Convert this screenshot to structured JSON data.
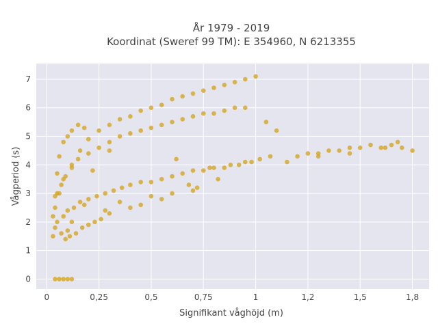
{
  "chart_data": {
    "type": "scatter",
    "title": "År 1979 - 2019",
    "subtitle": "Koordinat (Sweref 99 TM): E 354960, N 6213355",
    "xlabel": "Signifikant våghöjd (m)",
    "ylabel": "Vågperiod (s)",
    "xlim": [
      -0.05,
      1.83
    ],
    "ylim": [
      -0.35,
      7.55
    ],
    "x_ticks": [
      0,
      0.25,
      0.5,
      0.75,
      1,
      1.25,
      1.5,
      1.75
    ],
    "x_tick_labels": [
      "0",
      "0,25",
      "0,5",
      "0,75",
      "1",
      "1,2",
      "1,5",
      "1,8"
    ],
    "y_ticks": [
      0,
      1,
      2,
      3,
      4,
      5,
      6,
      7
    ],
    "y_tick_labels": [
      "0",
      "1",
      "2",
      "3",
      "4",
      "5",
      "6",
      "7"
    ],
    "grid": true,
    "colors": {
      "marker": "#D4A521",
      "plot_bg": "#E5E5F0",
      "grid": "#ffffff",
      "text": "#444444"
    },
    "series": [
      {
        "x": [
          0.04,
          0.06,
          0.08,
          0.1,
          0.12,
          0.03,
          0.03,
          0.04,
          0.05,
          0.06,
          0.08,
          0.1,
          0.12,
          0.15,
          0.18,
          0.04,
          0.07,
          0.09,
          0.11,
          0.14,
          0.17,
          0.2,
          0.23,
          0.26,
          0.3,
          0.04,
          0.06,
          0.08,
          0.12,
          0.16,
          0.2,
          0.25,
          0.3,
          0.35,
          0.4,
          0.45,
          0.5,
          0.55,
          0.6,
          0.65,
          0.7,
          0.75,
          0.8,
          0.85,
          0.9,
          0.95,
          1.0,
          1.05,
          1.1,
          1.15,
          1.2,
          1.25,
          1.3,
          1.35,
          1.4,
          1.45,
          1.5,
          1.55,
          1.6,
          1.65,
          1.7,
          1.75,
          0.05,
          0.08,
          0.1,
          0.13,
          0.16,
          0.2,
          0.24,
          0.28,
          0.32,
          0.36,
          0.4,
          0.45,
          0.5,
          0.55,
          0.6,
          0.65,
          0.7,
          0.75,
          0.8,
          0.85,
          0.88,
          0.92,
          0.95,
          0.98,
          0.05,
          0.07,
          0.09,
          0.12,
          0.15,
          0.2,
          0.25,
          0.3,
          0.35,
          0.4,
          0.45,
          0.5,
          0.55,
          0.6,
          0.65,
          0.7,
          0.75,
          0.8,
          0.85,
          0.9,
          0.95,
          0.4,
          0.45,
          0.55,
          0.6,
          0.7,
          0.72,
          0.82,
          0.3,
          0.22,
          0.18,
          0.12,
          0.1,
          0.28,
          0.35,
          0.5,
          0.62,
          0.68,
          0.78,
          1.02,
          1.07,
          1.3,
          1.45,
          1.62,
          1.68
        ],
        "y": [
          0.0,
          0.0,
          0.0,
          0.0,
          0.0,
          1.5,
          2.2,
          2.9,
          3.7,
          4.3,
          4.8,
          5.0,
          5.2,
          5.4,
          5.3,
          1.8,
          1.6,
          1.4,
          1.5,
          1.6,
          1.8,
          1.9,
          2.0,
          2.1,
          2.3,
          2.5,
          3.0,
          3.5,
          4.0,
          4.5,
          4.9,
          5.2,
          5.4,
          5.6,
          5.7,
          5.9,
          6.0,
          6.1,
          6.3,
          6.4,
          6.5,
          6.6,
          6.7,
          6.8,
          6.9,
          7.0,
          7.1,
          5.5,
          5.2,
          4.1,
          4.3,
          4.4,
          4.4,
          4.5,
          4.5,
          4.6,
          4.6,
          4.7,
          4.6,
          4.7,
          4.6,
          4.5,
          2.0,
          2.2,
          2.4,
          2.5,
          2.7,
          2.8,
          2.9,
          3.0,
          3.1,
          3.2,
          3.3,
          3.4,
          3.4,
          3.5,
          3.6,
          3.7,
          3.8,
          3.8,
          3.9,
          3.9,
          4.0,
          4.0,
          4.1,
          4.1,
          3.0,
          3.3,
          3.6,
          3.9,
          4.2,
          4.4,
          4.6,
          4.8,
          5.0,
          5.1,
          5.2,
          5.3,
          5.4,
          5.5,
          5.6,
          5.7,
          5.8,
          5.8,
          5.9,
          6.0,
          6.0,
          2.5,
          2.6,
          2.8,
          3.0,
          3.1,
          3.2,
          3.5,
          4.5,
          3.8,
          2.6,
          2.0,
          1.7,
          2.4,
          2.7,
          2.9,
          4.2,
          3.3,
          3.9,
          4.2,
          4.3,
          4.3,
          4.4,
          4.6,
          4.8
        ]
      }
    ]
  }
}
